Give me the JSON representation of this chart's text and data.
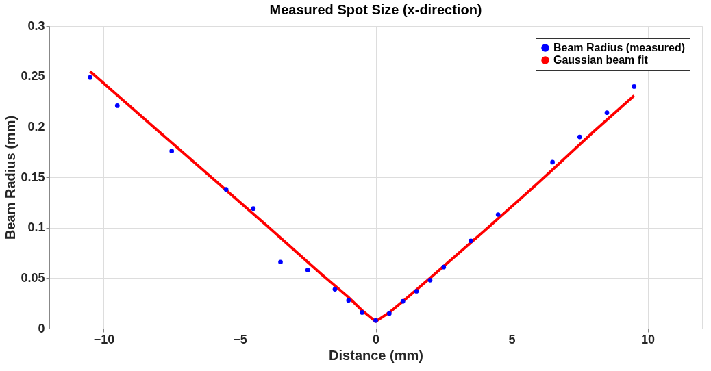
{
  "chart_data": {
    "type": "scatter",
    "title": "Measured Spot Size (x-direction)",
    "xlabel": "Distance (mm)",
    "ylabel": "Beam Radius (mm)",
    "xlim": [
      -12,
      12
    ],
    "xticks": [
      -10,
      -5,
      0,
      5,
      10
    ],
    "ylim": [
      0,
      0.3
    ],
    "yticks": [
      0,
      0.05,
      0.1,
      0.15,
      0.2,
      0.25,
      0.3
    ],
    "grid": true,
    "legend": "top right",
    "series": [
      {
        "name": "Beam Radius (measured)",
        "color": "#0000ff",
        "marker": "circle",
        "x": [
          -10.5,
          -9.5,
          -7.5,
          -5.5,
          -4.5,
          -3.5,
          -2.5,
          -1.5,
          -1,
          -0.5,
          0,
          0.5,
          1,
          1.5,
          2,
          2.5,
          3.5,
          4.5,
          6.5,
          7.5,
          8.5,
          9.5
        ],
        "values": [
          0.249,
          0.221,
          0.176,
          0.138,
          0.119,
          0.066,
          0.058,
          0.039,
          0.028,
          0.016,
          0.008,
          0.015,
          0.027,
          0.037,
          0.048,
          0.061,
          0.087,
          0.113,
          0.165,
          0.19,
          0.214,
          0.24
        ]
      },
      {
        "name": "Gaussian beam fit",
        "color": "#ff0000",
        "type": "line",
        "line_style": "solid",
        "x": [
          -10.5,
          -8,
          -6,
          -4,
          -2,
          -1,
          -0.5,
          0,
          0.5,
          1,
          2,
          4,
          6,
          8,
          9.5
        ],
        "values": [
          0.255,
          0.196,
          0.149,
          0.102,
          0.054,
          0.031,
          0.018,
          0.007,
          0.016,
          0.027,
          0.05,
          0.097,
          0.145,
          0.195,
          0.231
        ]
      }
    ]
  }
}
